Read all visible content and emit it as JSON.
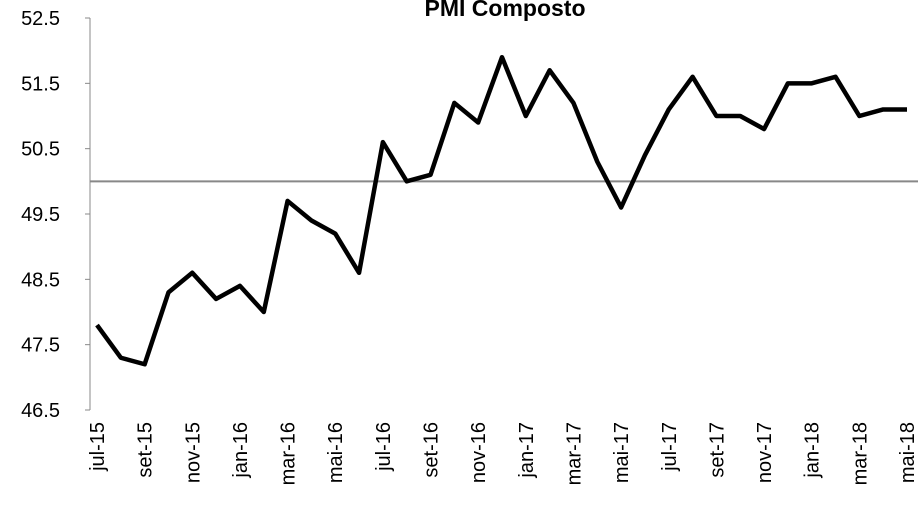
{
  "chart_data": {
    "type": "line",
    "title": "PMI Composto",
    "categories": [
      "jul-15",
      null,
      "set-15",
      null,
      "nov-15",
      null,
      "jan-16",
      null,
      "mar-16",
      null,
      "mai-16",
      null,
      "jul-16",
      null,
      "set-16",
      null,
      "nov-16",
      null,
      "jan-17",
      null,
      "mar-17",
      null,
      "mai-17",
      null,
      "jul-17",
      null,
      "set-17",
      null,
      "nov-17",
      null,
      "jan-18",
      null,
      "mar-18",
      null,
      "mai-18"
    ],
    "series": [
      {
        "name": "PMI Composto",
        "color": "#000000",
        "values": [
          47.8,
          47.3,
          47.2,
          48.3,
          48.6,
          48.2,
          48.4,
          48.0,
          49.7,
          49.4,
          49.2,
          48.6,
          50.6,
          50.0,
          50.1,
          51.2,
          50.9,
          51.9,
          51.0,
          51.7,
          51.2,
          50.3,
          49.6,
          50.4,
          51.1,
          51.6,
          51.0,
          51.0,
          50.8,
          51.5,
          51.5,
          51.6,
          51.0,
          51.1,
          51.1
        ]
      }
    ],
    "ylim": [
      46.5,
      52.5
    ],
    "yticks": [
      46.5,
      47.5,
      48.5,
      49.5,
      50.5,
      51.5,
      52.5
    ],
    "reference_line": 50,
    "grid": false
  }
}
